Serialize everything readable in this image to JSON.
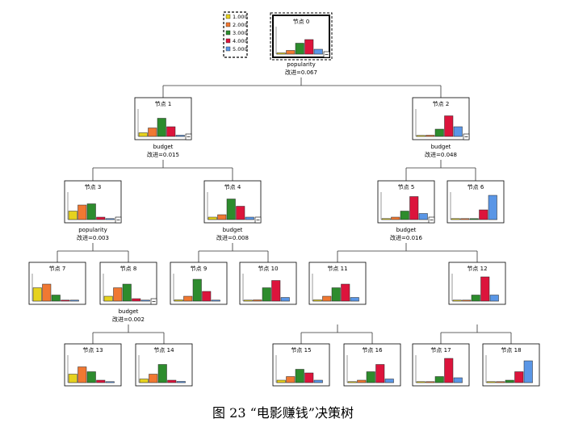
{
  "legend": [
    {
      "label": "1.000",
      "color": "#e6d21e"
    },
    {
      "label": "2.000",
      "color": "#f07832"
    },
    {
      "label": "3.000",
      "color": "#2d8c2d"
    },
    {
      "label": "4.000",
      "color": "#dc143c"
    },
    {
      "label": "5.000",
      "color": "#5a96e6"
    }
  ],
  "nodes": [
    {
      "id": 0,
      "label": "节点 0",
      "bars": [
        0.05,
        0.15,
        0.45,
        0.6,
        0.2
      ],
      "split": "popularity",
      "improve": "改进=0.067"
    },
    {
      "id": 1,
      "label": "节点 1",
      "bars": [
        0.15,
        0.35,
        0.75,
        0.4,
        0.05
      ],
      "split": "budget",
      "improve": "改进=0.015"
    },
    {
      "id": 2,
      "label": "节点 2",
      "bars": [
        0.0,
        0.05,
        0.3,
        0.85,
        0.4
      ],
      "split": "budget",
      "improve": "改进=0.048"
    },
    {
      "id": 3,
      "label": "节点 3",
      "bars": [
        0.35,
        0.6,
        0.65,
        0.1,
        0.0
      ],
      "split": "popularity",
      "improve": "改进=0.003"
    },
    {
      "id": 4,
      "label": "节点 4",
      "bars": [
        0.1,
        0.2,
        0.85,
        0.55,
        0.1
      ],
      "split": "budget",
      "improve": "改进=0.008"
    },
    {
      "id": 5,
      "label": "节点 5",
      "bars": [
        0.02,
        0.1,
        0.35,
        0.95,
        0.25
      ],
      "split": "budget",
      "improve": "改进=0.016"
    },
    {
      "id": 6,
      "label": "节点 6",
      "bars": [
        0.0,
        0.0,
        0.0,
        0.4,
        1.0
      ]
    },
    {
      "id": 7,
      "label": "节点 7",
      "bars": [
        0.55,
        0.7,
        0.25,
        0.0,
        0.0
      ]
    },
    {
      "id": 8,
      "label": "节点 8",
      "bars": [
        0.2,
        0.55,
        0.7,
        0.1,
        0.0
      ],
      "split": "budget",
      "improve": "改进=0.002"
    },
    {
      "id": 9,
      "label": "节点 9",
      "bars": [
        0.05,
        0.2,
        0.9,
        0.4,
        0.0
      ]
    },
    {
      "id": 10,
      "label": "节点 10",
      "bars": [
        0.0,
        0.05,
        0.55,
        0.85,
        0.15
      ]
    },
    {
      "id": 11,
      "label": "节点 11",
      "bars": [
        0.05,
        0.2,
        0.55,
        0.7,
        0.15
      ]
    },
    {
      "id": 12,
      "label": "节点 12",
      "bars": [
        0.0,
        0.0,
        0.25,
        1.0,
        0.25
      ]
    },
    {
      "id": 13,
      "label": "节点 13",
      "bars": [
        0.35,
        0.65,
        0.45,
        0.1,
        0.0
      ]
    },
    {
      "id": 14,
      "label": "节点 14",
      "bars": [
        0.15,
        0.35,
        0.75,
        0.1,
        0.05
      ]
    },
    {
      "id": 15,
      "label": "节点 15",
      "bars": [
        0.1,
        0.25,
        0.55,
        0.4,
        0.1
      ]
    },
    {
      "id": 16,
      "label": "节点 16",
      "bars": [
        0.0,
        0.1,
        0.45,
        0.75,
        0.15
      ]
    },
    {
      "id": 17,
      "label": "节点 17",
      "bars": [
        0.0,
        0.0,
        0.25,
        1.0,
        0.2
      ]
    },
    {
      "id": 18,
      "label": "节点 18",
      "bars": [
        0.0,
        0.0,
        0.1,
        0.45,
        0.9
      ]
    }
  ],
  "edges": [
    [
      0,
      1
    ],
    [
      0,
      2
    ],
    [
      1,
      3
    ],
    [
      1,
      4
    ],
    [
      2,
      5
    ],
    [
      2,
      6
    ],
    [
      3,
      7
    ],
    [
      3,
      8
    ],
    [
      4,
      9
    ],
    [
      4,
      10
    ],
    [
      5,
      11
    ],
    [
      5,
      12
    ],
    [
      8,
      13
    ],
    [
      8,
      14
    ],
    [
      11,
      15
    ],
    [
      11,
      16
    ],
    [
      12,
      17
    ],
    [
      12,
      18
    ]
  ],
  "caption": "图 23 “电影赚钱”决策树"
}
